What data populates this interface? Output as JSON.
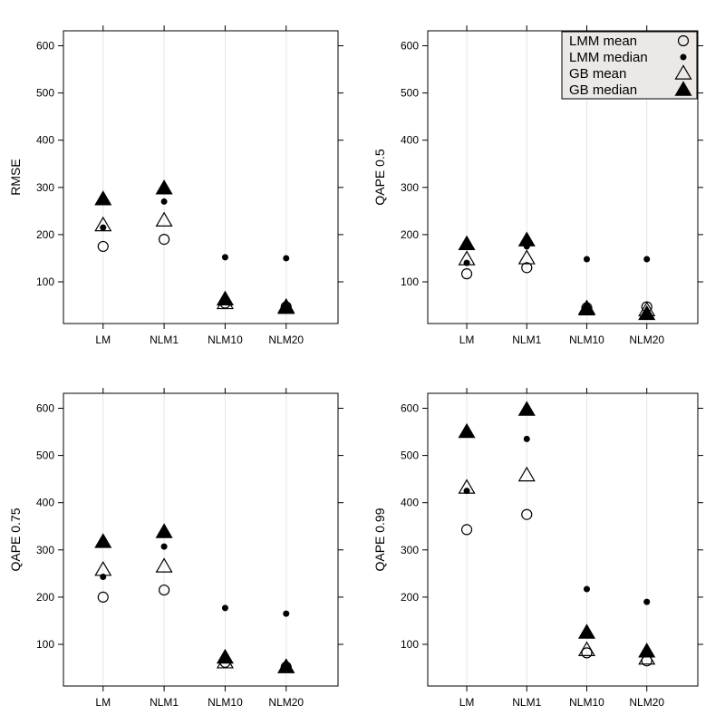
{
  "chart_data": [
    {
      "type": "scatter",
      "title": "",
      "xlabel": "",
      "ylabel": "RMSE",
      "categories": [
        "LM",
        "NLM1",
        "NLM10",
        "NLM20"
      ],
      "ylim": [
        0,
        620
      ],
      "yticks": [
        100,
        200,
        300,
        400,
        500,
        600
      ],
      "grid": "vertical",
      "series": [
        {
          "name": "LMM mean",
          "marker": "open-circle",
          "values": [
            175,
            190,
            55,
            47
          ]
        },
        {
          "name": "LMM median",
          "marker": "dot",
          "values": [
            215,
            270,
            152,
            150
          ]
        },
        {
          "name": "GB mean",
          "marker": "open-triangle",
          "values": [
            220,
            230,
            55,
            47
          ]
        },
        {
          "name": "GB median",
          "marker": "filled-triangle",
          "values": [
            275,
            298,
            63,
            45
          ]
        }
      ]
    },
    {
      "type": "scatter",
      "title": "",
      "xlabel": "",
      "ylabel": "QAPE 0.5",
      "categories": [
        "LM",
        "NLM1",
        "NLM10",
        "NLM20"
      ],
      "ylim": [
        0,
        620
      ],
      "yticks": [
        100,
        200,
        300,
        400,
        500,
        600
      ],
      "grid": "vertical",
      "legend_position": "top-right",
      "series": [
        {
          "name": "LMM mean",
          "marker": "open-circle",
          "values": [
            117,
            130,
            45,
            47
          ]
        },
        {
          "name": "LMM median",
          "marker": "dot",
          "values": [
            140,
            175,
            148,
            148
          ]
        },
        {
          "name": "GB mean",
          "marker": "open-triangle",
          "values": [
            148,
            150,
            44,
            40
          ]
        },
        {
          "name": "GB median",
          "marker": "filled-triangle",
          "values": [
            180,
            188,
            42,
            32
          ]
        }
      ]
    },
    {
      "type": "scatter",
      "title": "",
      "xlabel": "",
      "ylabel": "QAPE 0.75",
      "categories": [
        "LM",
        "NLM1",
        "NLM10",
        "NLM20"
      ],
      "ylim": [
        0,
        620
      ],
      "yticks": [
        100,
        200,
        300,
        400,
        500,
        600
      ],
      "grid": "vertical",
      "series": [
        {
          "name": "LMM mean",
          "marker": "open-circle",
          "values": [
            200,
            215,
            62,
            52
          ]
        },
        {
          "name": "LMM median",
          "marker": "dot",
          "values": [
            243,
            307,
            177,
            165
          ]
        },
        {
          "name": "GB mean",
          "marker": "open-triangle",
          "values": [
            258,
            265,
            62,
            52
          ]
        },
        {
          "name": "GB median",
          "marker": "filled-triangle",
          "values": [
            317,
            338,
            72,
            52
          ]
        }
      ]
    },
    {
      "type": "scatter",
      "title": "",
      "xlabel": "",
      "ylabel": "QAPE 0.99",
      "categories": [
        "LM",
        "NLM1",
        "NLM10",
        "NLM20"
      ],
      "ylim": [
        0,
        620
      ],
      "yticks": [
        100,
        200,
        300,
        400,
        500,
        600
      ],
      "grid": "vertical",
      "series": [
        {
          "name": "LMM mean",
          "marker": "open-circle",
          "values": [
            343,
            375,
            82,
            65
          ]
        },
        {
          "name": "LMM median",
          "marker": "dot",
          "values": [
            425,
            535,
            217,
            190
          ]
        },
        {
          "name": "GB mean",
          "marker": "open-triangle",
          "values": [
            432,
            458,
            88,
            70
          ]
        },
        {
          "name": "GB median",
          "marker": "filled-triangle",
          "values": [
            550,
            597,
            125,
            85
          ]
        }
      ]
    }
  ],
  "legend": {
    "items": [
      {
        "label": "LMM mean",
        "marker": "open-circle"
      },
      {
        "label": "LMM median",
        "marker": "dot"
      },
      {
        "label": "GB mean",
        "marker": "open-triangle"
      },
      {
        "label": "GB median",
        "marker": "filled-triangle"
      }
    ]
  },
  "colors": {
    "ink": "#000000",
    "grid": "#e6e6e6",
    "legend_bg": "#ece8e5"
  }
}
